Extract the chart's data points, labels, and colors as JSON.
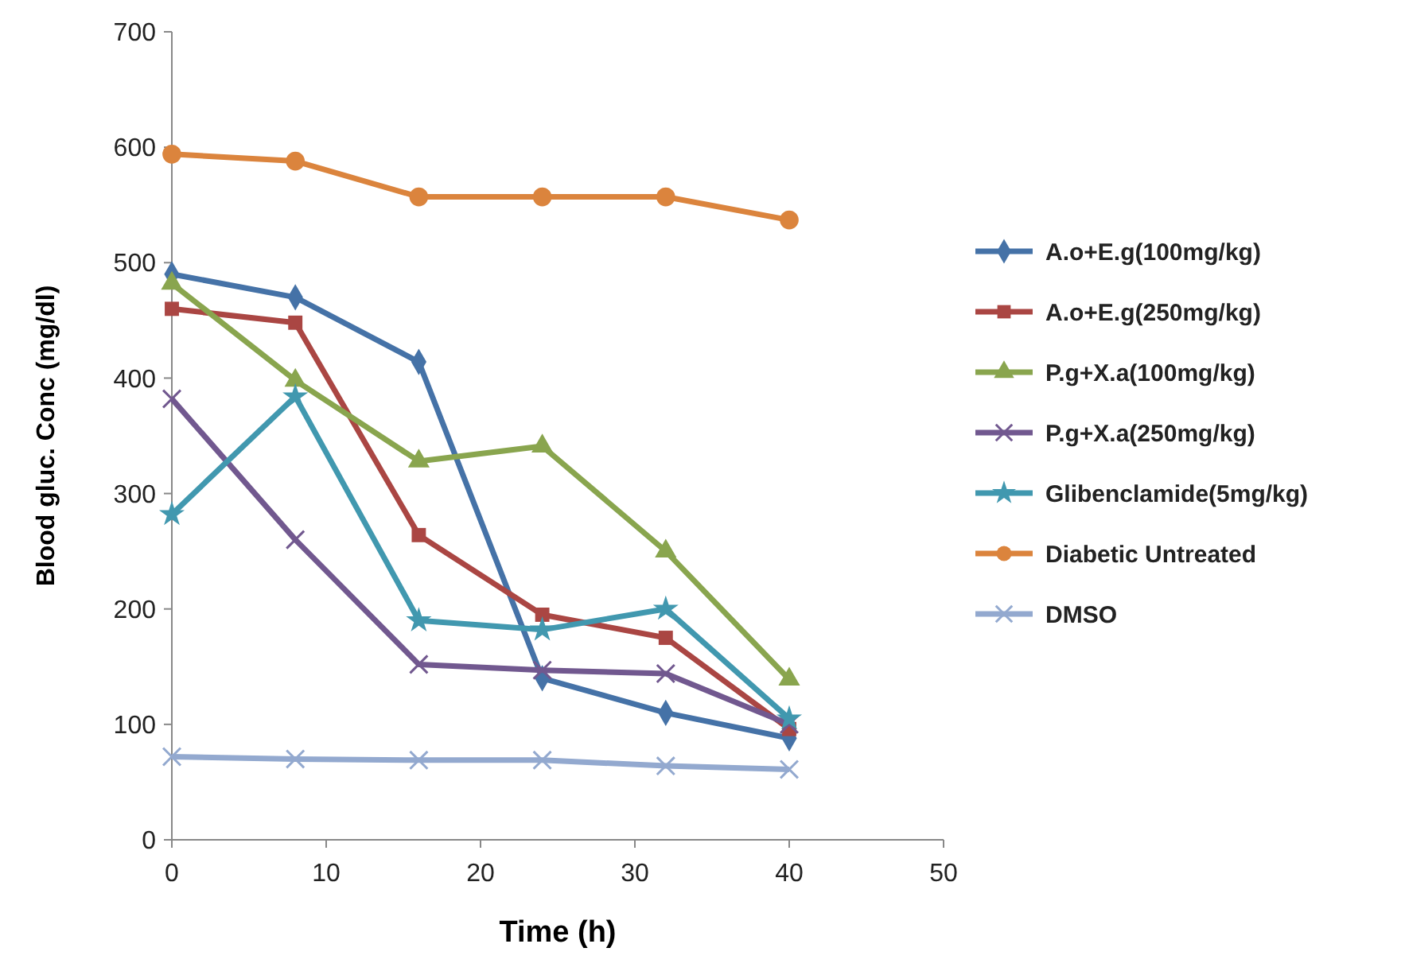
{
  "chart_data": {
    "type": "line",
    "xlabel": "Time (h)",
    "ylabel": "Blood gluc. Conc (mg/dl)",
    "x": [
      0,
      8,
      16,
      24,
      32,
      40
    ],
    "xlim": [
      0,
      50
    ],
    "xticks": [
      0,
      10,
      20,
      30,
      40,
      50
    ],
    "ylim": [
      0,
      700
    ],
    "yticks": [
      0,
      100,
      200,
      300,
      400,
      500,
      600,
      700
    ],
    "grid": false,
    "legend": "right",
    "line_style": "solid",
    "series": [
      {
        "name": "A.o+E.g(100mg/kg)",
        "color": "#4572a7",
        "marker": "diamond",
        "values": [
          490,
          470,
          414,
          140,
          110,
          88
        ]
      },
      {
        "name": "A.o+E.g(250mg/kg)",
        "color": "#aa4643",
        "marker": "square",
        "values": [
          460,
          448,
          264,
          195,
          175,
          96
        ]
      },
      {
        "name": "P.g+X.a(100mg/kg)",
        "color": "#89a54e",
        "marker": "triangle",
        "values": [
          482,
          398,
          328,
          341,
          250,
          139
        ]
      },
      {
        "name": "P.g+X.a(250mg/kg)",
        "color": "#71588f",
        "marker": "cross",
        "values": [
          382,
          260,
          152,
          147,
          144,
          100
        ]
      },
      {
        "name": "Glibenclamide(5mg/kg)",
        "color": "#4198af",
        "marker": "star",
        "values": [
          282,
          384,
          190,
          182,
          200,
          105
        ]
      },
      {
        "name": "Diabetic Untreated",
        "color": "#db843d",
        "marker": "circle",
        "values": [
          594,
          588,
          557,
          557,
          557,
          537
        ]
      },
      {
        "name": "DMSO",
        "color": "#93a9cf",
        "marker": "cross",
        "values": [
          72,
          70,
          69,
          69,
          64,
          61
        ]
      }
    ]
  }
}
